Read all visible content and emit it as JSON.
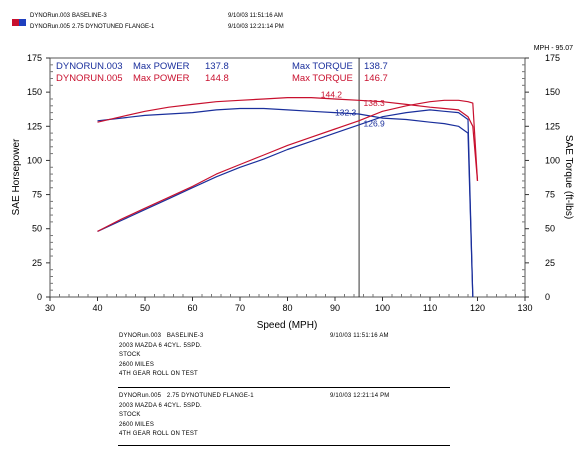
{
  "header": {
    "runs": [
      {
        "file": "DYNORun.003",
        "desc": "BASELINE-3",
        "datetime": "9/10/03 11:51:16 AM",
        "swatch": "#c8102e"
      },
      {
        "file": "DYNORun.005",
        "desc": "2.75 DYNOTUNED FLANGE-1",
        "datetime": "9/10/03 12:21:14 PM",
        "swatch": "#1f3fbf"
      }
    ],
    "mph_readout": "MPH - 95.07"
  },
  "legend": {
    "run1": {
      "name": "DYNORUN.003",
      "power_label": "Max POWER",
      "power": "137.8",
      "torque_label": "Max TORQUE",
      "torque": "138.7",
      "color": "#1a2f9c"
    },
    "run2": {
      "name": "DYNORUN.005",
      "power_label": "Max POWER",
      "power": "144.8",
      "torque_label": "Max TORQUE",
      "torque": "146.7",
      "color": "#c8102e"
    }
  },
  "chart_data": {
    "type": "line",
    "xlabel": "Speed (MPH)",
    "ylabel": "SAE Horsepower",
    "y2label": "SAE Torque (ft-lbs)",
    "xlim": [
      30,
      130
    ],
    "ylim": [
      0,
      175
    ],
    "x_ticks": [
      30,
      40,
      50,
      60,
      70,
      80,
      90,
      100,
      110,
      120,
      130
    ],
    "y_ticks": [
      0,
      25,
      50,
      75,
      100,
      125,
      150,
      175
    ],
    "cursor_x": 95.07,
    "grid": false,
    "series": [
      {
        "name": "DYNORUN.003",
        "measure": "power",
        "color": "#1a2f9c",
        "x": [
          40,
          45,
          50,
          55,
          60,
          65,
          70,
          75,
          80,
          85,
          90,
          95,
          100,
          105,
          110,
          113,
          116,
          118,
          119
        ],
        "y": [
          48,
          56,
          64,
          72,
          80,
          88,
          95,
          101,
          108,
          114,
          120,
          126,
          132,
          135,
          137,
          136,
          135,
          130,
          0
        ]
      },
      {
        "name": "DYNORUN.003",
        "measure": "torque",
        "color": "#1a2f9c",
        "x": [
          40,
          45,
          50,
          55,
          60,
          65,
          70,
          75,
          80,
          85,
          90,
          95,
          100,
          105,
          110,
          113,
          116,
          118,
          119
        ],
        "y": [
          129,
          131,
          133,
          134,
          135,
          137,
          138,
          138,
          137,
          136,
          135,
          134,
          131,
          130,
          128,
          127,
          125,
          120,
          0
        ]
      },
      {
        "name": "DYNORUN.005",
        "measure": "power",
        "color": "#c8102e",
        "x": [
          40,
          45,
          50,
          55,
          60,
          65,
          70,
          75,
          80,
          85,
          90,
          95,
          100,
          105,
          110,
          113,
          116,
          118,
          119,
          120
        ],
        "y": [
          48,
          57,
          65,
          73,
          81,
          90,
          97,
          104,
          111,
          117,
          123,
          129,
          136,
          140,
          143,
          144,
          144,
          143,
          142,
          85
        ]
      },
      {
        "name": "DYNORUN.005",
        "measure": "torque",
        "color": "#c8102e",
        "x": [
          40,
          45,
          50,
          55,
          60,
          65,
          70,
          75,
          80,
          85,
          90,
          95,
          100,
          105,
          110,
          113,
          116,
          118,
          119,
          120
        ],
        "y": [
          128,
          132,
          136,
          139,
          141,
          143,
          144,
          145,
          146,
          146,
          145,
          144,
          143,
          141,
          139,
          138,
          137,
          132,
          125,
          85
        ]
      }
    ],
    "annotations": [
      {
        "text": "144.2",
        "x": 87,
        "y": 146,
        "color": "#c8102e"
      },
      {
        "text": "138.3",
        "x": 96,
        "y": 140,
        "color": "#c8102e"
      },
      {
        "text": "132.3",
        "x": 90,
        "y": 133,
        "color": "#1a2f9c"
      },
      {
        "text": "126.9",
        "x": 96,
        "y": 125,
        "color": "#1a2f9c"
      }
    ]
  },
  "run_details": [
    {
      "file": "DYNORun.003",
      "desc": "BASELINE-3",
      "datetime": "9/10/03 11:51:16 AM",
      "lines": [
        "2003 MAZDA 6 4CYL. 5SPD.",
        "STOCK",
        "2600 MILES",
        "4TH GEAR ROLL ON TEST"
      ]
    },
    {
      "file": "DYNORun.005",
      "desc": "2.75 DYNOTUNED FLANGE-1",
      "datetime": "9/10/03 12:21:14 PM",
      "lines": [
        "2003 MAZDA 6 4CYL. 5SPD.",
        "STOCK",
        "2600 MILES",
        "4TH GEAR ROLL ON TEST"
      ]
    }
  ]
}
